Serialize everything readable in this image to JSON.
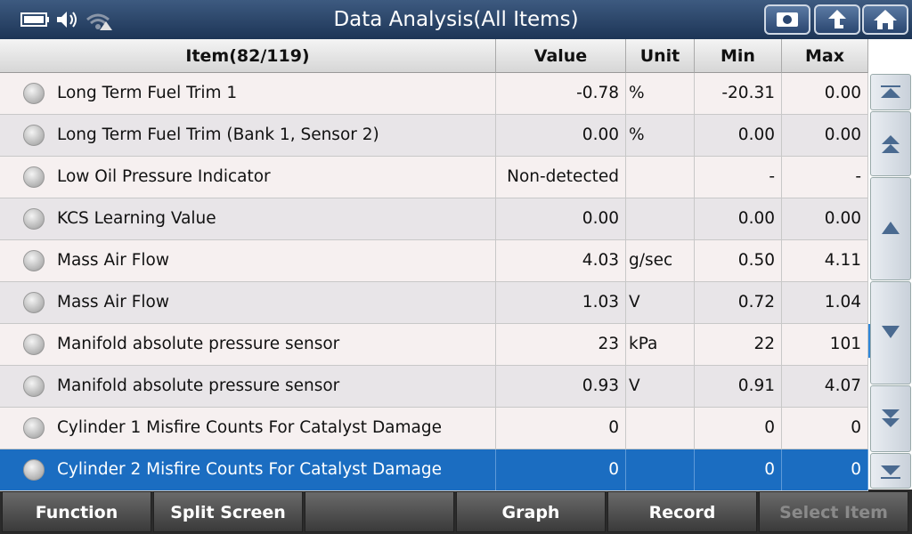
{
  "header": {
    "title": "Data Analysis(All Items)"
  },
  "table": {
    "columns": [
      "Item(82/119)",
      "Value",
      "Unit",
      "Min",
      "Max"
    ],
    "rows": [
      {
        "item": "Long Term Fuel Trim 1",
        "value": "-0.78",
        "unit": "%",
        "min": "-20.31",
        "max": "0.00"
      },
      {
        "item": "Long Term Fuel Trim (Bank 1, Sensor 2)",
        "value": "0.00",
        "unit": "%",
        "min": "0.00",
        "max": "0.00"
      },
      {
        "item": "Low Oil Pressure Indicator",
        "value": "Non-detected",
        "min": "-",
        "max": "-"
      },
      {
        "item": "KCS Learning Value",
        "value": "0.00",
        "min": "0.00",
        "max": "0.00"
      },
      {
        "item": "Mass Air Flow",
        "value": "4.03",
        "unit": "g/sec",
        "min": "0.50",
        "max": "4.11"
      },
      {
        "item": "Mass Air Flow",
        "value": "1.03",
        "unit": "V",
        "min": "0.72",
        "max": "1.04"
      },
      {
        "item": "Manifold absolute pressure sensor",
        "value": "23",
        "unit": "kPa",
        "min": "22",
        "max": "101"
      },
      {
        "item": "Manifold absolute pressure sensor",
        "value": "0.93",
        "unit": "V",
        "min": "0.91",
        "max": "4.07"
      },
      {
        "item": "Cylinder 1 Misfire Counts For Catalyst Damage",
        "value": "0",
        "min": "0",
        "max": "0"
      },
      {
        "item": "Cylinder 2 Misfire Counts For Catalyst Damage",
        "value": "0",
        "min": "0",
        "max": "0",
        "selected": true
      }
    ]
  },
  "footer": {
    "buttons": [
      "Function",
      "Split Screen",
      null,
      "Graph",
      "Record",
      "Select Item"
    ],
    "disabled": [
      5
    ]
  }
}
